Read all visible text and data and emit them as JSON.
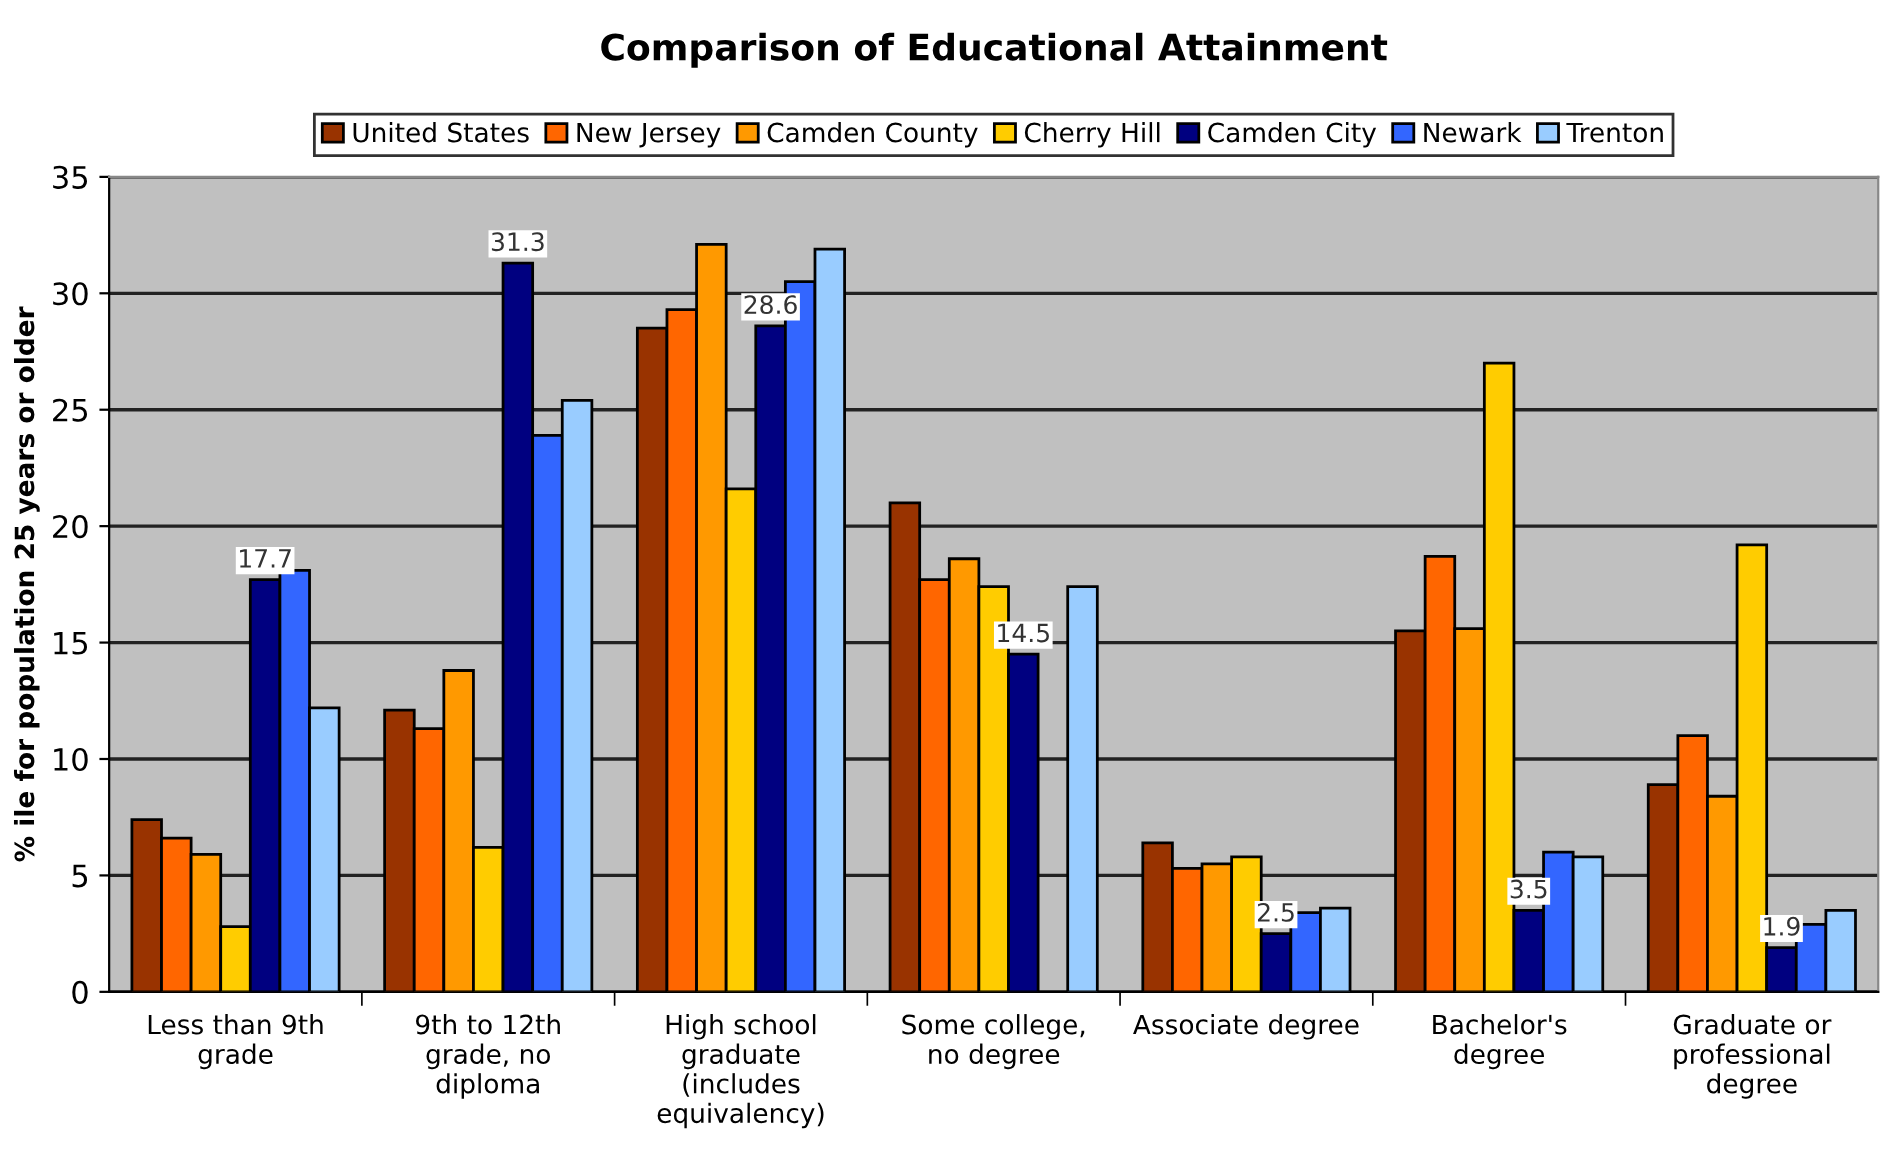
{
  "chart_data": {
    "type": "bar",
    "title": "Comparison of Educational Attainment",
    "ylabel": "% ile for population 25 years or older",
    "categories": [
      "Less than 9th\ngrade",
      "9th to 12th\ngrade, no\ndiploma",
      "High school\ngraduate\n(includes\nequivalency)",
      "Some college,\nno degree",
      "Associate degree",
      "Bachelor's\ndegree",
      "Graduate or\nprofessional\ndegree"
    ],
    "series": [
      {
        "name": "United States",
        "color": "#993300",
        "values": [
          7.4,
          12.1,
          28.5,
          21.0,
          6.4,
          15.5,
          8.9
        ]
      },
      {
        "name": "New Jersey",
        "color": "#ff6600",
        "values": [
          6.6,
          11.3,
          29.3,
          17.7,
          5.3,
          18.7,
          11.0
        ]
      },
      {
        "name": "Camden County",
        "color": "#ff9900",
        "values": [
          5.9,
          13.8,
          32.1,
          18.6,
          5.5,
          15.6,
          8.4
        ]
      },
      {
        "name": "Cherry Hill",
        "color": "#ffcc00",
        "values": [
          2.8,
          6.2,
          21.6,
          17.4,
          5.8,
          27.0,
          19.2
        ]
      },
      {
        "name": "Camden City",
        "color": "#000080",
        "values": [
          17.7,
          31.3,
          28.6,
          14.5,
          2.5,
          3.5,
          1.9
        ],
        "value_labels": [
          "17.7",
          "31.3",
          "28.6",
          "14.5",
          "2.5",
          "3.5",
          "1.9"
        ]
      },
      {
        "name": "Newark",
        "color": "#3366ff",
        "values": [
          18.1,
          23.9,
          30.5,
          null,
          3.4,
          6.0,
          2.9
        ]
      },
      {
        "name": "Trenton",
        "color": "#99ccff",
        "values": [
          12.2,
          25.4,
          31.9,
          17.4,
          3.6,
          5.8,
          3.5
        ]
      }
    ],
    "ylim": [
      0,
      35
    ],
    "yticks": [
      0,
      5,
      10,
      15,
      20,
      25,
      30,
      35
    ],
    "grid": "y",
    "legend": "top"
  }
}
